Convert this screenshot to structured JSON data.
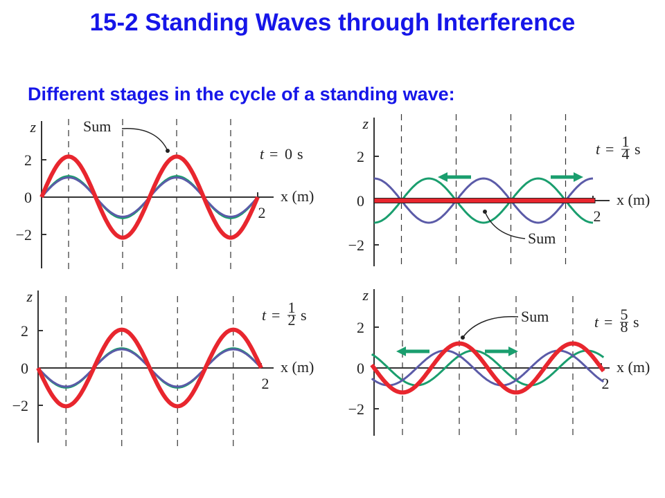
{
  "title": "15-2 Standing Waves through Interference",
  "subtitle": "Different stages in the cycle of a standing wave:",
  "panels": [
    {
      "z_label": "z",
      "z_ticks": [
        "2",
        "0",
        "−2"
      ],
      "x_label": "x (m)",
      "x_tick": "2",
      "time": {
        "var": "t",
        "equals": "=",
        "value": "0",
        "unit": "s"
      },
      "sum_label": "Sum"
    },
    {
      "z_label": "z",
      "z_ticks": [
        "2",
        "0",
        "−2"
      ],
      "x_label": "x (m)",
      "x_tick": "2",
      "time": {
        "var": "t",
        "equals": "=",
        "numerator": "1",
        "denominator": "4",
        "unit": "s"
      },
      "sum_label": "Sum"
    },
    {
      "z_label": "z",
      "z_ticks": [
        "2",
        "0",
        "−2"
      ],
      "x_label": "x (m)",
      "x_tick": "2",
      "time": {
        "var": "t",
        "equals": "=",
        "numerator": "1",
        "denominator": "2",
        "unit": "s"
      }
    },
    {
      "z_label": "z",
      "z_ticks": [
        "2",
        "0",
        "−2"
      ],
      "x_label": "x (m)",
      "x_tick": "2",
      "time": {
        "var": "t",
        "equals": "=",
        "numerator": "5",
        "denominator": "8",
        "unit": "s"
      },
      "sum_label": "Sum"
    }
  ]
}
